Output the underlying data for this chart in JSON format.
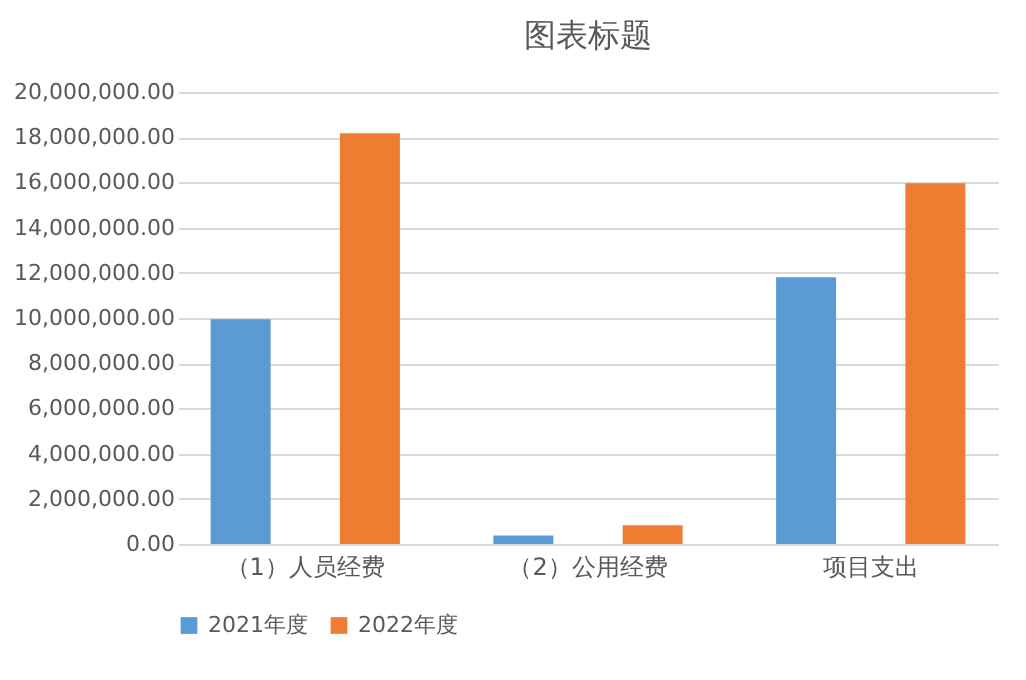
{
  "chart_data": {
    "type": "bar",
    "title": "图表标题",
    "categories": [
      "（1）人员经费",
      "（2）公用经费",
      "项目支出"
    ],
    "series": [
      {
        "name": "2021年度",
        "color": "#5b9bd5",
        "values": [
          9950000,
          380000,
          11800000
        ]
      },
      {
        "name": "2022年度",
        "color": "#ed7d31",
        "values": [
          18170000,
          830000,
          15960000
        ]
      }
    ],
    "ylim": [
      0,
      20000000
    ],
    "yticks": [
      {
        "value": 0,
        "label": "0.00"
      },
      {
        "value": 2000000,
        "label": "2,000,000.00"
      },
      {
        "value": 4000000,
        "label": "4,000,000.00"
      },
      {
        "value": 6000000,
        "label": "6,000,000.00"
      },
      {
        "value": 8000000,
        "label": "8,000,000.00"
      },
      {
        "value": 10000000,
        "label": "10,000,000.00"
      },
      {
        "value": 12000000,
        "label": "12,000,000.00"
      },
      {
        "value": 14000000,
        "label": "14,000,000.00"
      },
      {
        "value": 16000000,
        "label": "16,000,000.00"
      },
      {
        "value": 18000000,
        "label": "18,000,000.00"
      },
      {
        "value": 20000000,
        "label": "20,000,000.00"
      }
    ],
    "grid": "y",
    "legend": "bottom"
  }
}
